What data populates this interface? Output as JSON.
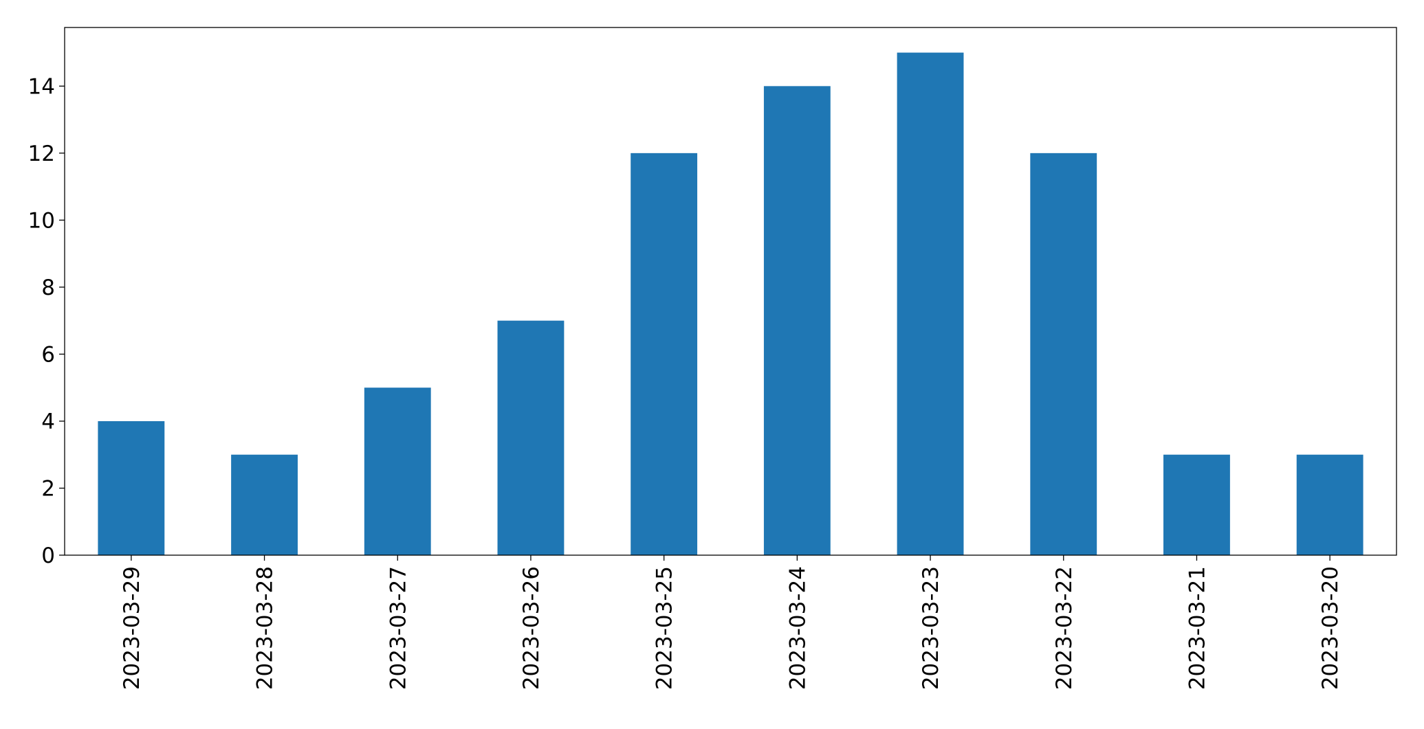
{
  "chart_data": {
    "type": "bar",
    "categories": [
      "2023-03-29",
      "2023-03-28",
      "2023-03-27",
      "2023-03-26",
      "2023-03-25",
      "2023-03-24",
      "2023-03-23",
      "2023-03-22",
      "2023-03-21",
      "2023-03-20"
    ],
    "values": [
      4,
      3,
      5,
      7,
      12,
      14,
      15,
      12,
      3,
      3
    ],
    "color": "#1f77b4",
    "ylim": [
      0,
      15.75
    ],
    "yticks": [
      0,
      2,
      4,
      6,
      8,
      10,
      12,
      14
    ],
    "grid": false
  }
}
